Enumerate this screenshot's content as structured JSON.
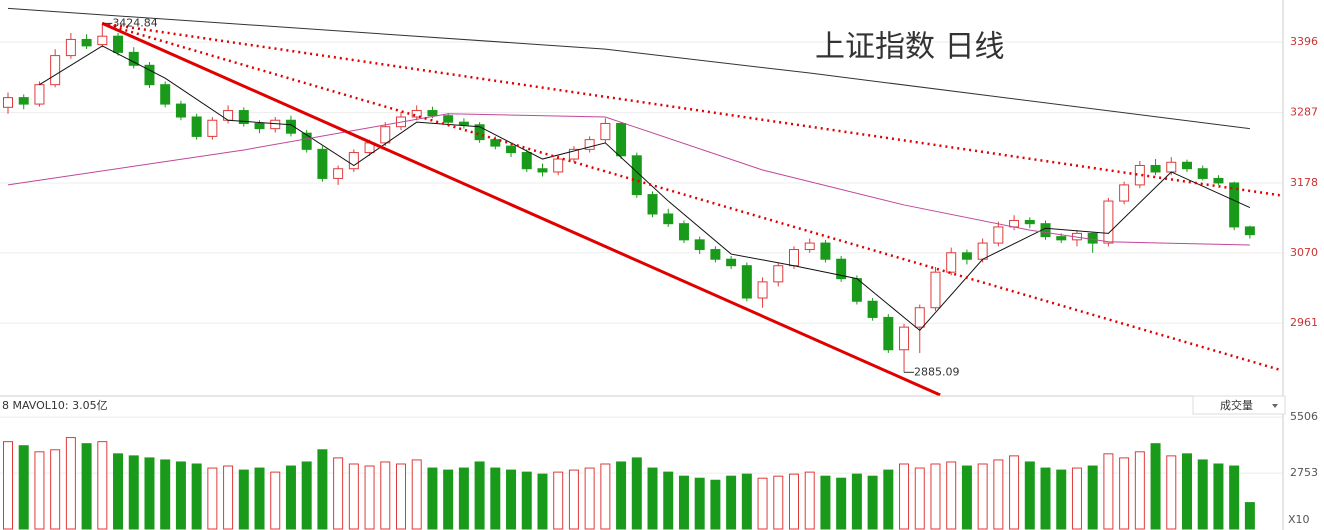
{
  "chart_data": {
    "type": "candlestick",
    "title": "上证指数 日线",
    "up_color": "#e03a3a",
    "down_color": "#1a9a1a",
    "ylim": [
      2850,
      3461
    ],
    "yticks": [
      2961,
      3070,
      3178,
      3287,
      3396
    ],
    "grid": true,
    "opens": [
      3295,
      3310,
      3300,
      3330,
      3375,
      3400,
      3392,
      3405,
      3380,
      3360,
      3330,
      3300,
      3280,
      3250,
      3275,
      3290,
      3270,
      3262,
      3275,
      3255,
      3230,
      3185,
      3200,
      3225,
      3240,
      3265,
      3280,
      3290,
      3282,
      3272,
      3268,
      3245,
      3235,
      3225,
      3200,
      3195,
      3215,
      3230,
      3245,
      3270,
      3220,
      3160,
      3130,
      3115,
      3090,
      3075,
      3060,
      3050,
      3000,
      3025,
      3050,
      3075,
      3085,
      3060,
      3030,
      2995,
      2970,
      2920,
      2955,
      2985,
      3040,
      3070,
      3060,
      3085,
      3110,
      3120,
      3115,
      3095,
      3090,
      3100,
      3085,
      3150,
      3175,
      3205,
      3195,
      3210,
      3200,
      3185,
      3178,
      3110
    ],
    "highs": [
      3318,
      3315,
      3335,
      3385,
      3410,
      3408,
      3424.84,
      3410,
      3388,
      3365,
      3335,
      3305,
      3285,
      3280,
      3298,
      3295,
      3275,
      3280,
      3282,
      3260,
      3235,
      3205,
      3230,
      3245,
      3272,
      3288,
      3298,
      3296,
      3286,
      3278,
      3272,
      3250,
      3240,
      3230,
      3208,
      3220,
      3235,
      3250,
      3278,
      3272,
      3225,
      3165,
      3138,
      3120,
      3095,
      3080,
      3065,
      3055,
      3032,
      3055,
      3080,
      3092,
      3090,
      3065,
      3035,
      3000,
      2975,
      2960,
      2990,
      3048,
      3078,
      3075,
      3092,
      3118,
      3128,
      3125,
      3120,
      3100,
      3105,
      3102,
      3155,
      3180,
      3212,
      3215,
      3218,
      3214,
      3205,
      3190,
      3180,
      3112
    ],
    "lows": [
      3285,
      3292,
      3296,
      3326,
      3370,
      3385,
      3388,
      3375,
      3355,
      3325,
      3295,
      3275,
      3245,
      3245,
      3270,
      3265,
      3255,
      3256,
      3250,
      3225,
      3180,
      3175,
      3195,
      3220,
      3235,
      3260,
      3275,
      3278,
      3268,
      3262,
      3240,
      3230,
      3218,
      3195,
      3188,
      3190,
      3210,
      3225,
      3240,
      3215,
      3155,
      3125,
      3110,
      3085,
      3068,
      3055,
      3045,
      2995,
      2985,
      3018,
      3045,
      3070,
      3055,
      3025,
      2990,
      2965,
      2915,
      2885.09,
      2915,
      2980,
      3035,
      3052,
      3055,
      3080,
      3105,
      3108,
      3090,
      3085,
      3080,
      3070,
      3080,
      3145,
      3170,
      3190,
      3190,
      3195,
      3182,
      3175,
      3105,
      3092
    ],
    "closes": [
      3310,
      3300,
      3330,
      3375,
      3400,
      3390,
      3405,
      3380,
      3360,
      3330,
      3300,
      3280,
      3250,
      3275,
      3290,
      3270,
      3262,
      3275,
      3255,
      3230,
      3185,
      3200,
      3225,
      3240,
      3265,
      3280,
      3290,
      3282,
      3272,
      3268,
      3245,
      3235,
      3225,
      3200,
      3195,
      3215,
      3230,
      3245,
      3270,
      3220,
      3160,
      3130,
      3115,
      3090,
      3075,
      3060,
      3050,
      3000,
      3025,
      3050,
      3075,
      3085,
      3060,
      3030,
      2995,
      2970,
      2920,
      2955,
      2985,
      3040,
      3070,
      3060,
      3085,
      3110,
      3120,
      3115,
      3095,
      3090,
      3100,
      3085,
      3150,
      3175,
      3205,
      3195,
      3210,
      3200,
      3185,
      3178,
      3110,
      3098
    ],
    "lines": [
      {
        "color": "#111111",
        "x": [
          2,
          6,
          10,
          14,
          18,
          22,
          26,
          30,
          34,
          38,
          42,
          46,
          50,
          54,
          58,
          62,
          66,
          70,
          74,
          79
        ],
        "values": [
          3330,
          3390,
          3340,
          3275,
          3268,
          3205,
          3272,
          3265,
          3215,
          3240,
          3150,
          3068,
          3050,
          3030,
          2950,
          3060,
          3108,
          3100,
          3195,
          3140
        ]
      },
      {
        "color": "#c0479a",
        "x": [
          0,
          15,
          28,
          38,
          48,
          57,
          65,
          70,
          79
        ],
        "values": [
          3175,
          3229,
          3285,
          3280,
          3198,
          3144,
          3105,
          3087,
          3082
        ]
      },
      {
        "color": "#333333",
        "x": [
          0,
          38,
          51,
          79
        ],
        "values": [
          3448,
          3385,
          3348,
          3262
        ]
      }
    ],
    "trend_lines": [
      {
        "style": "solid",
        "color": "#e00000",
        "x": [
          6,
          59.3
        ],
        "values": [
          3424.84,
          2850
        ]
      },
      {
        "style": "dotted",
        "color": "#e00000",
        "x": [
          6,
          80.9
        ],
        "values": [
          3424.84,
          3159
        ]
      },
      {
        "style": "dotted",
        "color": "#e00000",
        "x": [
          6,
          80.9
        ],
        "values": [
          3424.84,
          2889
        ]
      }
    ],
    "annotations": [
      {
        "x": 6,
        "value": 3424.84,
        "text": "3424.84"
      },
      {
        "x": 57,
        "value": 2885.09,
        "text": "2885.09"
      }
    ],
    "volume": {
      "legend": "8 MAVOL10: 3.05亿",
      "selector": "成交量",
      "unit_label": "X10",
      "ylim": [
        0,
        6350
      ],
      "yticks": [
        2753,
        5506
      ],
      "values": [
        4300,
        4100,
        3800,
        3900,
        4500,
        4200,
        4300,
        3700,
        3600,
        3500,
        3400,
        3300,
        3200,
        3000,
        3100,
        2900,
        3000,
        2800,
        3100,
        3300,
        3900,
        3500,
        3200,
        3100,
        3300,
        3200,
        3400,
        3000,
        2900,
        3000,
        3300,
        3000,
        2900,
        2800,
        2700,
        2800,
        2900,
        3000,
        3200,
        3300,
        3500,
        3000,
        2800,
        2600,
        2500,
        2400,
        2600,
        2700,
        2500,
        2600,
        2700,
        2800,
        2600,
        2500,
        2700,
        2600,
        2900,
        3200,
        3000,
        3200,
        3300,
        3100,
        3200,
        3400,
        3600,
        3300,
        3000,
        2900,
        3000,
        3100,
        3700,
        3500,
        3800,
        4200,
        3600,
        3700,
        3400,
        3200,
        3100,
        1300
      ]
    }
  }
}
